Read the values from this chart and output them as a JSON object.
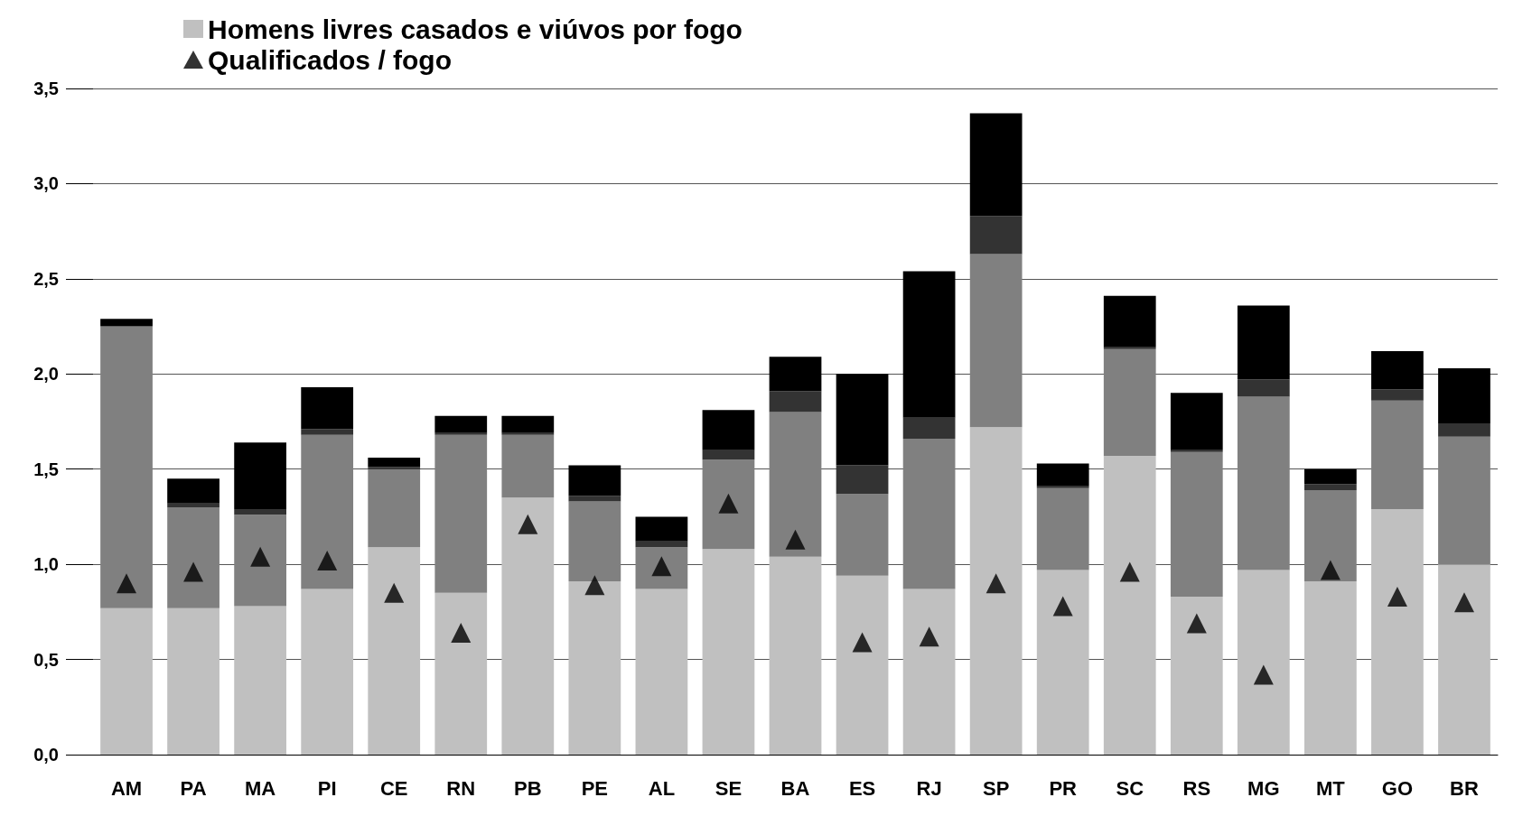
{
  "chart_data": {
    "type": "bar",
    "stacked": true,
    "categories": [
      "AM",
      "PA",
      "MA",
      "PI",
      "CE",
      "RN",
      "PB",
      "PE",
      "AL",
      "SE",
      "BA",
      "ES",
      "RJ",
      "SP",
      "PR",
      "SC",
      "RS",
      "MG",
      "MT",
      "GO",
      "BR"
    ],
    "series": [
      {
        "name": "Homens livres casados e viúvos por fogo",
        "color": "#c0c0c0",
        "values": [
          0.77,
          0.77,
          0.78,
          0.87,
          1.09,
          0.85,
          1.35,
          0.91,
          0.87,
          1.08,
          1.04,
          0.94,
          0.87,
          1.72,
          0.97,
          1.57,
          0.83,
          0.97,
          0.91,
          1.29,
          1.0
        ]
      },
      {
        "color": "#808080",
        "values": [
          1.48,
          0.53,
          0.48,
          0.81,
          0.41,
          0.83,
          0.33,
          0.42,
          0.22,
          0.47,
          0.76,
          0.43,
          0.79,
          0.91,
          0.43,
          0.56,
          0.76,
          0.91,
          0.48,
          0.57,
          0.67
        ]
      },
      {
        "color": "#333333",
        "values": [
          0,
          0.02,
          0.03,
          0.03,
          0.01,
          0.01,
          0.01,
          0.03,
          0.03,
          0.05,
          0.11,
          0.15,
          0.11,
          0.2,
          0.01,
          0.01,
          0.01,
          0.09,
          0.03,
          0.06,
          0.07
        ]
      },
      {
        "color": "#000000",
        "values": [
          0.04,
          0.13,
          0.35,
          0.22,
          0.05,
          0.09,
          0.09,
          0.16,
          0.13,
          0.21,
          0.18,
          0.48,
          0.77,
          0.54,
          0.12,
          0.27,
          0.3,
          0.39,
          0.08,
          0.2,
          0.29
        ]
      },
      {
        "name": "Qualificados / fogo",
        "type": "scatter",
        "color": "#000000",
        "marker": "triangle",
        "x": [
          "AM",
          "PA",
          "MA",
          "PI",
          "CE",
          "RN",
          "PB",
          "PE",
          "AL",
          "SE",
          "BA",
          "ES",
          "RJ",
          "SP",
          "PR",
          "SC",
          "RS",
          "MG",
          "MT",
          "GO",
          "BR"
        ],
        "values": [
          0.9,
          0.96,
          1.04,
          1.02,
          0.85,
          0.64,
          1.21,
          0.89,
          0.99,
          1.32,
          1.13,
          0.59,
          0.62,
          0.9,
          0.78,
          0.96,
          0.69,
          0.42,
          0.97,
          0.83,
          0.8
        ]
      }
    ],
    "ylim": [
      0,
      3.5
    ],
    "yticks": [
      {
        "value": 0,
        "label": "0,0"
      },
      {
        "value": 0.5,
        "label": "0,5"
      },
      {
        "value": 1,
        "label": "1,0"
      },
      {
        "value": 1.5,
        "label": "1,5"
      },
      {
        "value": 2,
        "label": "2,0"
      },
      {
        "value": 2.5,
        "label": "2,5"
      },
      {
        "value": 3,
        "label": "3,0"
      },
      {
        "value": 3.5,
        "label": "3,5"
      }
    ],
    "grid": "y",
    "legend": "top left"
  }
}
